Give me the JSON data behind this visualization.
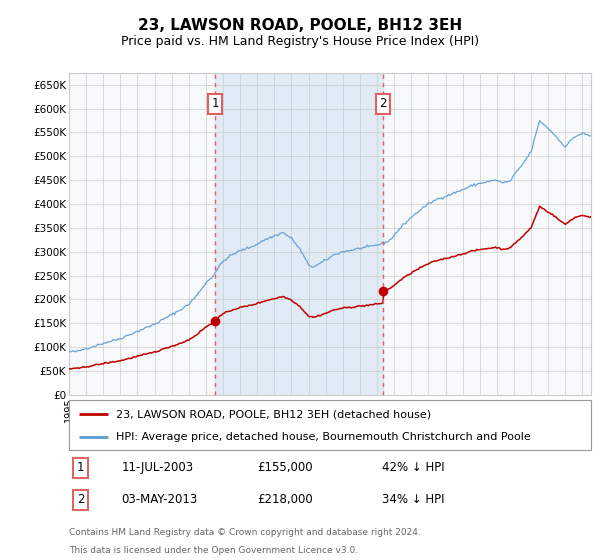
{
  "title": "23, LAWSON ROAD, POOLE, BH12 3EH",
  "subtitle": "Price paid vs. HM Land Registry's House Price Index (HPI)",
  "legend_line1": "23, LAWSON ROAD, POOLE, BH12 3EH (detached house)",
  "legend_line2": "HPI: Average price, detached house, Bournemouth Christchurch and Poole",
  "annotation1_date": "11-JUL-2003",
  "annotation1_price": "£155,000",
  "annotation1_hpi": "42% ↓ HPI",
  "annotation1_year": 2003.53,
  "annotation1_value": 155000,
  "annotation2_date": "03-MAY-2013",
  "annotation2_price": "£218,000",
  "annotation2_hpi": "34% ↓ HPI",
  "annotation2_year": 2013.34,
  "annotation2_value": 218000,
  "xmin": 1995,
  "xmax": 2025.5,
  "ymin": 0,
  "ymax": 675000,
  "yticks": [
    0,
    50000,
    100000,
    150000,
    200000,
    250000,
    300000,
    350000,
    400000,
    450000,
    500000,
    550000,
    600000,
    650000
  ],
  "hpi_color": "#5b9bd5",
  "price_color": "#c00000",
  "vline_color": "#e06060",
  "dot_color": "#c00000",
  "bg_shade_color": "#dce9f5",
  "grid_color": "#cccccc",
  "chart_bg": "#f0f4fa",
  "footnote1": "Contains HM Land Registry data © Crown copyright and database right 2024.",
  "footnote2": "This data is licensed under the Open Government Licence v3.0."
}
